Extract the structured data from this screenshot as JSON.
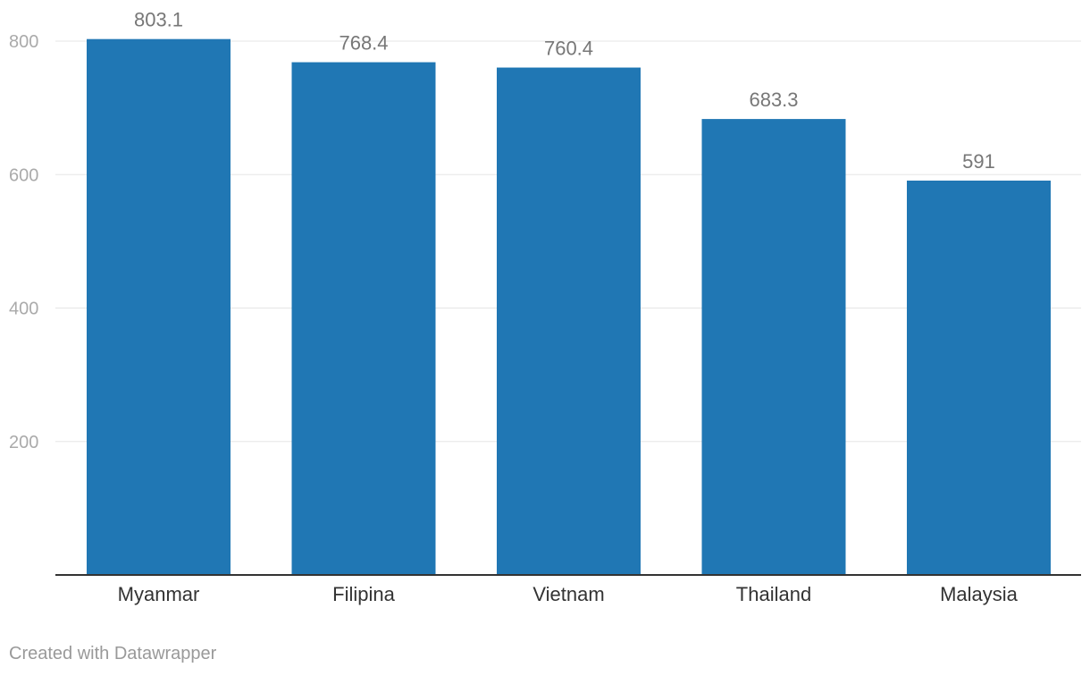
{
  "chart_data": {
    "type": "bar",
    "categories": [
      "Myanmar",
      "Filipina",
      "Vietnam",
      "Thailand",
      "Malaysia"
    ],
    "values": [
      803.1,
      768.4,
      760.4,
      683.3,
      591
    ],
    "value_labels": [
      "803.1",
      "768.4",
      "760.4",
      "683.3",
      "591"
    ],
    "title": "",
    "xlabel": "",
    "ylabel": "",
    "ylim": [
      0,
      800
    ],
    "yticks": [
      200,
      400,
      600,
      800
    ],
    "grid": true,
    "colors": {
      "bar": "#2077b4",
      "gridline": "#e5e5e5",
      "axis": "#333333",
      "tick_text": "#aaaaaa",
      "value_text": "#777777",
      "category_text": "#333333"
    }
  },
  "footer": {
    "credit": "Created with Datawrapper"
  }
}
